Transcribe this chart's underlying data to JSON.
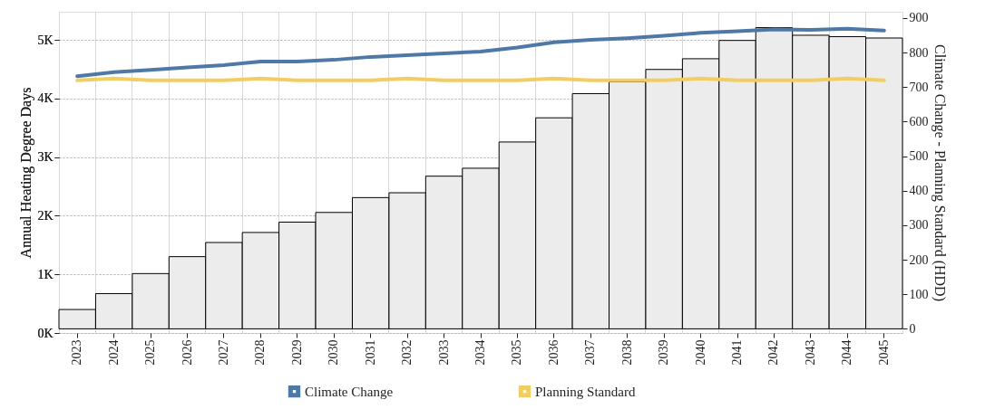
{
  "chart_data": {
    "type": "line",
    "xlabel": null,
    "ylabel": "Annual Heating Degree Days",
    "y2label": "Climate Change - Planning Standard (HDD)",
    "categories": [
      "2023",
      "2024",
      "2025",
      "2026",
      "2027",
      "2028",
      "2029",
      "2030",
      "2031",
      "2032",
      "2033",
      "2034",
      "2035",
      "2036",
      "2037",
      "2038",
      "2039",
      "2040",
      "2041",
      "2042",
      "2043",
      "2044",
      "2045"
    ],
    "series": [
      {
        "type": "bar",
        "axis": "y2",
        "color": "#ececec",
        "values": [
          56,
          102,
          160,
          209,
          250,
          279,
          309,
          337,
          380,
          394,
          442,
          465,
          541,
          611,
          681,
          715,
          751,
          782,
          835,
          872,
          850,
          846,
          842
        ]
      },
      {
        "name": "Climate Change",
        "color": "#4e79a7",
        "values": [
          4380,
          4450,
          4490,
          4530,
          4570,
          4630,
          4630,
          4660,
          4710,
          4740,
          4770,
          4800,
          4870,
          4960,
          5000,
          5030,
          5070,
          5120,
          5150,
          5180,
          5170,
          5190,
          5160
        ]
      },
      {
        "name": "Planning Standard",
        "color": "#f1ce63",
        "values": [
          4310,
          4340,
          4310,
          4310,
          4310,
          4340,
          4310,
          4310,
          4310,
          4340,
          4310,
          4310,
          4310,
          4340,
          4310,
          4310,
          4310,
          4340,
          4310,
          4310,
          4310,
          4340,
          4310
        ]
      }
    ],
    "ylim": [
      0,
      5480
    ],
    "yticks": [
      {
        "value": 0,
        "label": "0K"
      },
      {
        "value": 1000,
        "label": "1K"
      },
      {
        "value": 2000,
        "label": "2K"
      },
      {
        "value": 3000,
        "label": "3K"
      },
      {
        "value": 4000,
        "label": "4K"
      },
      {
        "value": 5000,
        "label": "5K"
      }
    ],
    "y2lim": [
      -12,
      918
    ],
    "y2ticks": [
      0,
      100,
      200,
      300,
      400,
      500,
      600,
      700,
      800,
      900
    ],
    "grid": true,
    "legend": "bottom",
    "line_style": "solid",
    "marker": "none"
  }
}
